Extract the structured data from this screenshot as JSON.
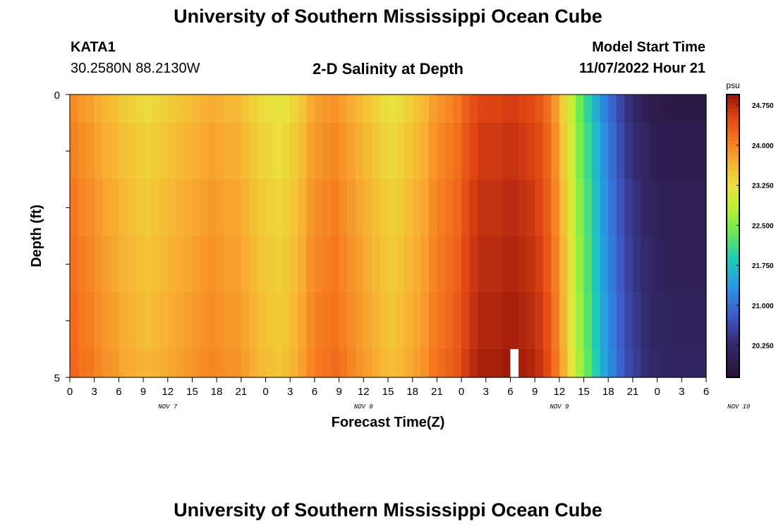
{
  "header": {
    "title": "University of Southern Mississippi Ocean Cube",
    "station": "KATA1",
    "coords": "30.2580N  88.2130W",
    "plot_title": "2-D Salinity at Depth",
    "model_start_label": "Model Start Time",
    "model_start_value": "11/07/2022 Hour 21"
  },
  "footer": {
    "title": "University of Southern Mississippi Ocean Cube"
  },
  "chart_data": {
    "type": "heatmap",
    "title": "2-D Salinity at Depth",
    "xlabel": "Forecast Time(Z)",
    "ylabel": "Depth (ft)",
    "colorbar_label": "psu",
    "x_start": "11/07/2022 00Z",
    "x_step_hours": 1,
    "x_tick_labels": [
      "0",
      "3",
      "6",
      "9",
      "12",
      "15",
      "18",
      "21",
      "0",
      "3",
      "6",
      "9",
      "12",
      "15",
      "18",
      "21",
      "0",
      "3",
      "6",
      "9",
      "12",
      "15",
      "18",
      "21",
      "0",
      "3",
      "6"
    ],
    "day_labels": [
      {
        "text": "NOV 7",
        "hour": 12
      },
      {
        "text": "NOV 8",
        "hour": 36
      },
      {
        "text": "NOV 9",
        "hour": 60
      },
      {
        "text": "NOV 10",
        "hour": 82
      }
    ],
    "y_ticks": [
      "0",
      "5"
    ],
    "ylim": [
      0,
      5
    ],
    "xlim_hours": [
      0,
      78
    ],
    "colorbar_ticks": [
      24.75,
      24.0,
      23.25,
      22.5,
      21.75,
      21.0,
      20.25
    ],
    "colorbar_range": [
      19.65,
      24.95
    ],
    "depth_bins": [
      0,
      1,
      2,
      3,
      4,
      5
    ],
    "surface_salinity_by_hour": [
      23.95,
      23.85,
      23.8,
      23.7,
      23.6,
      23.55,
      23.45,
      23.4,
      23.35,
      23.3,
      23.35,
      23.4,
      23.45,
      23.5,
      23.55,
      23.6,
      23.65,
      23.7,
      23.65,
      23.6,
      23.6,
      23.5,
      23.4,
      23.3,
      23.25,
      23.2,
      23.25,
      23.35,
      23.5,
      23.7,
      23.8,
      23.85,
      23.9,
      23.8,
      23.7,
      23.6,
      23.5,
      23.4,
      23.3,
      23.25,
      23.3,
      23.4,
      23.5,
      23.6,
      23.8,
      23.9,
      24.0,
      24.1,
      24.3,
      24.45,
      24.55,
      24.55,
      24.55,
      24.6,
      24.6,
      24.55,
      24.5,
      24.4,
      24.2,
      23.85,
      23.4,
      22.9,
      22.4,
      22.0,
      21.6,
      21.2,
      20.9,
      20.6,
      20.35,
      20.2,
      20.05,
      19.95,
      19.9,
      19.85,
      19.85,
      19.85,
      19.85,
      19.85
    ],
    "depth_increase_psu": [
      0,
      0.08,
      0.15,
      0.2,
      0.25,
      0.3
    ],
    "missing_cells": [
      {
        "hour": 54,
        "depth": 4.5
      }
    ]
  }
}
